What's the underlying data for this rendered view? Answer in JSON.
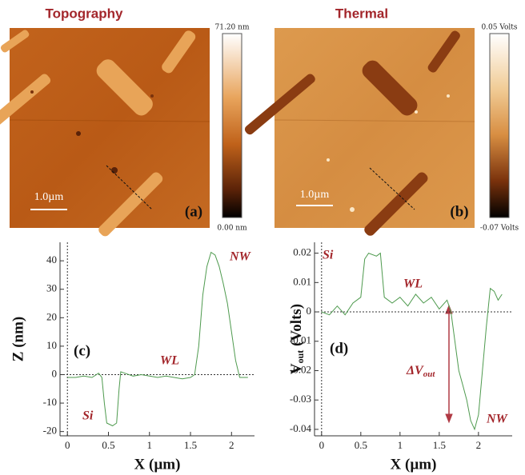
{
  "images": [
    {
      "title": "Topography",
      "panel": "(a)",
      "scale_bar": "1.0µm",
      "colorbar_max": "71.20 nm",
      "colorbar_min": "0.00 nm"
    },
    {
      "title": "Thermal",
      "panel": "(b)",
      "scale_bar": "1.0µm",
      "colorbar_max": "0.05 Volts",
      "colorbar_min": "-0.07 Volts"
    }
  ],
  "chart_data": [
    {
      "type": "line",
      "panel": "(c)",
      "x_label": "X (µm)",
      "y_label": "Z (nm)",
      "color": "#4e9a4e",
      "annotations": [
        "NW",
        "WL",
        "Si"
      ],
      "x": [
        0,
        0.1,
        0.2,
        0.3,
        0.38,
        0.42,
        0.45,
        0.48,
        0.55,
        0.6,
        0.63,
        0.65,
        0.7,
        0.8,
        0.9,
        1.0,
        1.1,
        1.2,
        1.3,
        1.4,
        1.5,
        1.55,
        1.6,
        1.65,
        1.7,
        1.75,
        1.8,
        1.85,
        1.9,
        1.95,
        2.0,
        2.05,
        2.1,
        2.15,
        2.2
      ],
      "values": [
        -1,
        -1,
        -0.5,
        -1,
        0.5,
        -1,
        -10,
        -17,
        -18,
        -17,
        -5,
        1,
        0.5,
        -0.5,
        0,
        -0.5,
        -1,
        -0.5,
        -1,
        -1.5,
        -1,
        0,
        10,
        28,
        38,
        43,
        42,
        38,
        32,
        25,
        15,
        5,
        -1,
        -1,
        -1
      ],
      "xlim": [
        -0.09,
        2.28
      ],
      "ylim": [
        -21.5,
        46.5
      ],
      "xticks": [
        0,
        0.5,
        1,
        1.5,
        2
      ],
      "yticks": [
        -20,
        -10,
        0,
        10,
        20,
        30,
        40
      ]
    },
    {
      "type": "line",
      "panel": "(d)",
      "x_label": "X (µm)",
      "y_label": [
        "V",
        "out",
        " (Volts)"
      ],
      "color": "#4e9a4e",
      "annotations": [
        "Si",
        "WL",
        "NW",
        [
          "ΔV",
          "out"
        ]
      ],
      "x": [
        0,
        0.1,
        0.2,
        0.3,
        0.4,
        0.5,
        0.55,
        0.6,
        0.7,
        0.75,
        0.8,
        0.9,
        1.0,
        1.1,
        1.2,
        1.3,
        1.4,
        1.5,
        1.6,
        1.65,
        1.7,
        1.75,
        1.8,
        1.85,
        1.9,
        1.95,
        2.0,
        2.05,
        2.1,
        2.15,
        2.2,
        2.25,
        2.3
      ],
      "values": [
        0,
        -0.001,
        0.002,
        -0.001,
        0.003,
        0.005,
        0.018,
        0.02,
        0.019,
        0.02,
        0.005,
        0.003,
        0.005,
        0.002,
        0.006,
        0.003,
        0.005,
        0.001,
        0.004,
        0,
        -0.01,
        -0.02,
        -0.025,
        -0.03,
        -0.037,
        -0.04,
        -0.035,
        -0.02,
        -0.005,
        0.008,
        0.007,
        0.004,
        0.006
      ],
      "xlim": [
        -0.09,
        2.43
      ],
      "ylim": [
        -0.0422,
        0.0237
      ],
      "xticks": [
        0,
        0.5,
        1,
        1.5,
        2
      ],
      "yticks": [
        -0.04,
        -0.03,
        -0.02,
        -0.01,
        0,
        0.01,
        0.02
      ]
    }
  ]
}
